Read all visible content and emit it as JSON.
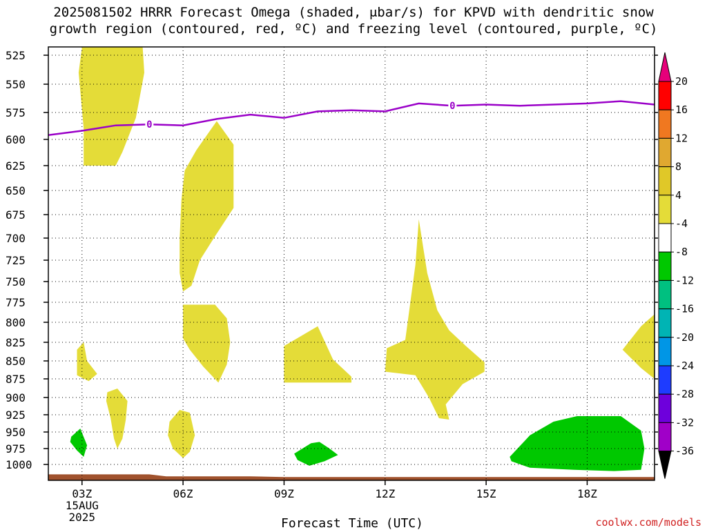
{
  "title_line1": "2025081502 HRRR Forecast Omega (shaded, μbar/s) for KPVD with dendritic snow",
  "title_line2": "growth region (contoured, red, ºC) and freezing level (contoured, purple, ºC)",
  "credit": "coolwx.com/models",
  "chart_data": {
    "type": "area",
    "title": "2025081502 HRRR Forecast Omega (shaded, μbar/s) for KPVD with dendritic snow growth region (contoured, red, ºC) and freezing level (contoured, purple, ºC)",
    "xlabel": "Forecast Time (UTC)",
    "ylabel": "",
    "xlim": [
      2.0,
      20.0
    ],
    "ylim": [
      1020,
      520
    ],
    "x_ticks": [
      {
        "value": 3,
        "label": "03Z",
        "sub1": "15AUG",
        "sub2": "2025"
      },
      {
        "value": 6,
        "label": "06Z"
      },
      {
        "value": 9,
        "label": "09Z"
      },
      {
        "value": 12,
        "label": "12Z"
      },
      {
        "value": 15,
        "label": "15Z"
      },
      {
        "value": 18,
        "label": "18Z"
      }
    ],
    "y_ticks": [
      525,
      550,
      575,
      600,
      625,
      650,
      675,
      700,
      725,
      750,
      775,
      800,
      825,
      850,
      875,
      900,
      925,
      950,
      975,
      1000
    ],
    "grid": true,
    "colorbar": {
      "labels": [
        "20",
        "16",
        "12",
        "8",
        "4",
        "-4",
        "-8",
        "-12",
        "-16",
        "-20",
        "-24",
        "-28",
        "-32",
        "-36"
      ],
      "colors": [
        "#ff0000",
        "#f07820",
        "#e0a830",
        "#e0c828",
        "#e4dc38",
        "#ffffff",
        "#00c800",
        "#00c080",
        "#00b4b4",
        "#0096e6",
        "#1e3cff",
        "#6e00dc",
        "#a000c8",
        "#a0a0a0"
      ],
      "top_arrow_color": "#e6007a",
      "bottom_arrow_color": "#000000"
    },
    "freezing_level": {
      "label": "0",
      "color": "#9a00c8",
      "points": [
        [
          2.0,
          596
        ],
        [
          3.0,
          592
        ],
        [
          4.0,
          587
        ],
        [
          5.0,
          586
        ],
        [
          6.0,
          587
        ],
        [
          7.0,
          581
        ],
        [
          8.0,
          577
        ],
        [
          9.0,
          580
        ],
        [
          10.0,
          574
        ],
        [
          11.0,
          573
        ],
        [
          12.0,
          574
        ],
        [
          13.0,
          567
        ],
        [
          14.0,
          569
        ],
        [
          15.0,
          568
        ],
        [
          16.0,
          569
        ],
        [
          17.0,
          568
        ],
        [
          18.0,
          567
        ],
        [
          19.0,
          565
        ],
        [
          20.0,
          568
        ]
      ],
      "label_positions": [
        [
          5.0,
          586
        ],
        [
          14.0,
          569
        ]
      ]
    },
    "omega_regions": [
      {
        "name": "upward-3Z",
        "color": "#e4dc38",
        "points": [
          [
            3.0,
            520
          ],
          [
            4.8,
            520
          ],
          [
            4.85,
            540
          ],
          [
            4.6,
            580
          ],
          [
            4.2,
            612
          ],
          [
            4.0,
            625
          ],
          [
            3.05,
            625
          ],
          [
            3.05,
            590
          ],
          [
            2.9,
            540
          ]
        ]
      },
      {
        "name": "upward-6Z-upper",
        "color": "#e4dc38",
        "points": [
          [
            7.0,
            583
          ],
          [
            7.5,
            605
          ],
          [
            7.5,
            668
          ],
          [
            6.95,
            698
          ],
          [
            6.5,
            725
          ],
          [
            6.25,
            755
          ],
          [
            6.0,
            762
          ],
          [
            5.9,
            740
          ],
          [
            5.9,
            700
          ],
          [
            5.95,
            660
          ],
          [
            6.05,
            630
          ],
          [
            6.4,
            610
          ]
        ]
      },
      {
        "name": "upward-6Z-lower",
        "color": "#e4dc38",
        "points": [
          [
            6.0,
            778
          ],
          [
            6.95,
            778
          ],
          [
            7.3,
            795
          ],
          [
            7.4,
            825
          ],
          [
            7.3,
            855
          ],
          [
            7.05,
            880
          ],
          [
            6.6,
            858
          ],
          [
            6.2,
            835
          ],
          [
            6.0,
            820
          ]
        ]
      },
      {
        "name": "upward-9Z",
        "color": "#e4dc38",
        "points": [
          [
            9.0,
            830
          ],
          [
            10.0,
            805
          ],
          [
            10.45,
            848
          ],
          [
            11.0,
            872
          ],
          [
            11.0,
            880
          ],
          [
            9.0,
            880
          ]
        ]
      },
      {
        "name": "upward-12Z",
        "color": "#e4dc38",
        "points": [
          [
            12.05,
            833
          ],
          [
            12.6,
            822
          ],
          [
            12.9,
            730
          ],
          [
            13.0,
            680
          ],
          [
            13.25,
            740
          ],
          [
            13.55,
            785
          ],
          [
            13.9,
            810
          ],
          [
            14.4,
            830
          ],
          [
            14.95,
            852
          ],
          [
            14.95,
            865
          ],
          [
            14.3,
            882
          ],
          [
            13.8,
            910
          ],
          [
            13.9,
            932
          ],
          [
            13.6,
            930
          ],
          [
            13.3,
            900
          ],
          [
            12.9,
            870
          ],
          [
            12.0,
            865
          ]
        ]
      },
      {
        "name": "upward-20Z",
        "color": "#e4dc38",
        "points": [
          [
            20.0,
            790
          ],
          [
            20.0,
            875
          ],
          [
            19.6,
            860
          ],
          [
            19.05,
            835
          ],
          [
            19.6,
            805
          ]
        ]
      },
      {
        "name": "upward-3Z-small",
        "color": "#e4dc38",
        "points": [
          [
            2.85,
            835
          ],
          [
            3.05,
            825
          ],
          [
            3.15,
            850
          ],
          [
            3.45,
            868
          ],
          [
            3.2,
            878
          ],
          [
            2.85,
            870
          ]
        ]
      },
      {
        "name": "upward-4Z",
        "color": "#e4dc38",
        "points": [
          [
            3.75,
            893
          ],
          [
            4.05,
            888
          ],
          [
            4.35,
            905
          ],
          [
            4.3,
            932
          ],
          [
            4.2,
            960
          ],
          [
            4.05,
            975
          ],
          [
            3.95,
            960
          ],
          [
            3.85,
            930
          ],
          [
            3.72,
            905
          ]
        ]
      },
      {
        "name": "upward-6Z-bottom",
        "color": "#e4dc38",
        "points": [
          [
            5.6,
            935
          ],
          [
            5.9,
            918
          ],
          [
            6.2,
            922
          ],
          [
            6.35,
            955
          ],
          [
            6.2,
            980
          ],
          [
            6.0,
            990
          ],
          [
            5.7,
            975
          ],
          [
            5.55,
            955
          ]
        ]
      },
      {
        "name": "downward-3Z",
        "color": "#00c800",
        "points": [
          [
            2.68,
            957
          ],
          [
            2.95,
            945
          ],
          [
            3.15,
            970
          ],
          [
            3.05,
            988
          ],
          [
            2.85,
            978
          ],
          [
            2.65,
            965
          ]
        ]
      },
      {
        "name": "downward-10Z",
        "color": "#00c800",
        "points": [
          [
            9.3,
            983
          ],
          [
            9.8,
            967
          ],
          [
            10.05,
            965
          ],
          [
            10.35,
            975
          ],
          [
            10.6,
            985
          ],
          [
            10.2,
            995
          ],
          [
            9.75,
            1002
          ],
          [
            9.4,
            993
          ]
        ]
      },
      {
        "name": "downward-17Z",
        "color": "#00c800",
        "points": [
          [
            15.7,
            988
          ],
          [
            16.3,
            955
          ],
          [
            17.0,
            935
          ],
          [
            17.7,
            927
          ],
          [
            19.0,
            927
          ],
          [
            19.6,
            948
          ],
          [
            19.7,
            975
          ],
          [
            19.6,
            1008
          ],
          [
            18.8,
            1010
          ],
          [
            17.6,
            1008
          ],
          [
            16.3,
            1005
          ],
          [
            15.75,
            995
          ]
        ]
      }
    ],
    "terrain": {
      "color": "#a0522d",
      "points": [
        [
          2.0,
          1015
        ],
        [
          5.0,
          1015
        ],
        [
          5.5,
          1018
        ],
        [
          8.0,
          1018
        ],
        [
          9.0,
          1019
        ],
        [
          20.0,
          1019
        ],
        [
          20.0,
          1024
        ],
        [
          2.0,
          1024
        ]
      ]
    }
  }
}
